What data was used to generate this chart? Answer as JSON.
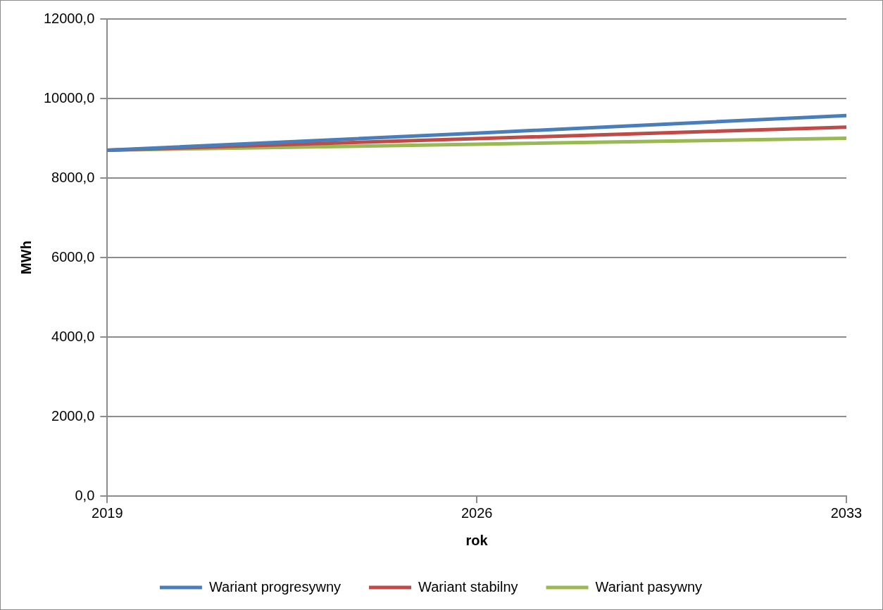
{
  "chart_data": {
    "type": "line",
    "xlabel": "rok",
    "ylabel": "MWh",
    "x": [
      2019,
      2026,
      2033
    ],
    "series": [
      {
        "name": "Wariant progresywny",
        "color": "#4a7ebb",
        "values": [
          8700,
          9130,
          9570
        ]
      },
      {
        "name": "Wariant stabilny",
        "color": "#be4b48",
        "values": [
          8700,
          8990,
          9280
        ]
      },
      {
        "name": "Wariant pasywny",
        "color": "#98b954",
        "values": [
          8700,
          8850,
          9000
        ]
      }
    ],
    "xlim": [
      2019,
      2033
    ],
    "xticks": [
      2019,
      2026,
      2033
    ],
    "ylim": [
      0,
      12000
    ],
    "yticks": [
      {
        "value": 0,
        "label": "0,0"
      },
      {
        "value": 2000,
        "label": "2000,0"
      },
      {
        "value": 4000,
        "label": "4000,0"
      },
      {
        "value": 6000,
        "label": "6000,0"
      },
      {
        "value": 8000,
        "label": "8000,0"
      },
      {
        "value": 10000,
        "label": "10000,0"
      },
      {
        "value": 12000,
        "label": "12000,0"
      }
    ],
    "grid": "y",
    "legend": "bottom",
    "marker": "none",
    "line_style": "solid"
  }
}
